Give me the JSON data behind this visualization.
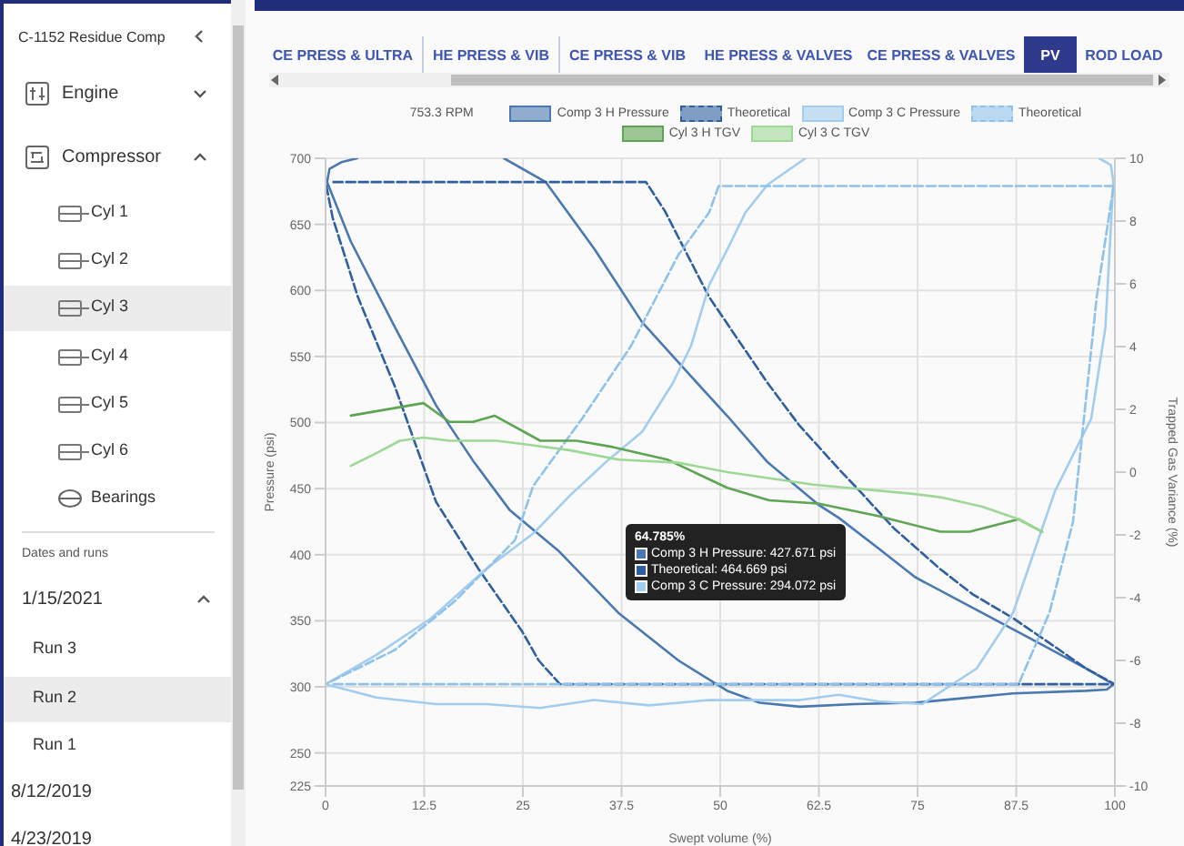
{
  "chart_data": {
    "type": "line",
    "xlabel": "Swept volume (%)",
    "ylabel": "Pressure (psi)",
    "y2label": "Trapped Gas Variance (%)",
    "xlim": [
      0,
      100
    ],
    "xticks": [
      0,
      12.5,
      25,
      37.5,
      50,
      62.5,
      75,
      87.5,
      100
    ],
    "ylim": [
      225,
      700
    ],
    "yticks": [
      225,
      250,
      300,
      350,
      400,
      450,
      500,
      550,
      600,
      650,
      700
    ],
    "y2lim": [
      -10,
      10
    ],
    "y2ticks": [
      -10,
      -8,
      -6,
      -4,
      -2,
      0,
      2,
      4,
      6,
      8,
      10
    ],
    "grid": true,
    "legend": "top",
    "series": [
      {
        "name": "Comp 3 H Pressure",
        "color": "#4a78b0",
        "line_style": "solid",
        "x": [
          22.6,
          27.9,
          34.1,
          40.1,
          46.3,
          50.9,
          56,
          62.4,
          65,
          70,
          74.7,
          81.6,
          90.1,
          96.3,
          99.8,
          99,
          96.3,
          87.1,
          80,
          74.7,
          67,
          60.1,
          55,
          50.9,
          44.7,
          37.1,
          29.5,
          23.3,
          18.7,
          14,
          8.8,
          3.2,
          0.2,
          0.5,
          2,
          4
        ],
        "values": [
          700,
          682,
          631,
          576,
          535,
          505,
          470,
          438,
          428,
          405,
          383,
          361,
          334,
          314,
          302,
          298,
          297,
          295,
          291,
          288,
          287,
          285,
          288,
          297,
          320,
          356,
          403,
          434,
          471,
          513,
          572,
          637,
          682,
          692,
          697,
          700
        ]
      },
      {
        "name": "Theoretical",
        "color": "#2f5f9e",
        "line_style": "dashed",
        "x": [
          1,
          40.6,
          43,
          46,
          48.6,
          52,
          56,
          60,
          65,
          67.7,
          72,
          77.9,
          82,
          87.1,
          92,
          96.3,
          100,
          29.7,
          27,
          24.9,
          19.4,
          14,
          8.8,
          4.1,
          0.9,
          0
        ],
        "values": [
          682,
          682,
          660,
          625,
          595,
          565,
          530,
          498,
          465,
          448,
          420,
          389,
          370,
          352,
          332,
          314,
          302,
          302,
          320,
          342,
          389,
          440,
          527,
          595,
          655,
          682
        ]
      },
      {
        "name": "Comp 3 C Pressure",
        "color": "#a3cdee",
        "line_style": "solid",
        "x": [
          98,
          99.5,
          99.8,
          98.8,
          97,
          92.4,
          87.1,
          82.5,
          75.6,
          70,
          65,
          60.1,
          48.6,
          41,
          34,
          27.2,
          20.3,
          14,
          6.4,
          0,
          6.4,
          13.4,
          20.3,
          26.3,
          31,
          35.5,
          40.1,
          44,
          46.3,
          48.6,
          50.9,
          53.2,
          56,
          60.8
        ],
        "values": [
          700,
          695,
          682,
          572,
          503,
          448,
          356,
          314,
          287,
          289,
          294,
          290,
          290,
          286,
          290,
          284,
          287,
          287,
          292,
          302,
          324,
          352,
          389,
          416,
          445,
          470,
          493,
          530,
          558,
          604,
          631,
          659,
          680,
          700
        ]
      },
      {
        "name": "Theoretical",
        "color": "#8fc2ea",
        "line_style": "dashed",
        "x": [
          1,
          87.8,
          91.7,
          94.7,
          97.7,
          99.8,
          100,
          49.8,
          48.6,
          44.7,
          38.7,
          32.5,
          26.3,
          24,
          16.4,
          8.8,
          0
        ],
        "values": [
          302,
          302,
          356,
          425,
          595,
          678,
          679,
          679,
          659,
          627,
          558,
          503,
          452,
          411,
          365,
          328,
          302
        ]
      },
      {
        "name": "Cyl 3 H TGV",
        "color": "#5da552",
        "line_style": "solid",
        "axis": "y2",
        "x": [
          3.2,
          12.4,
          15.7,
          18.7,
          21.4,
          27.2,
          31.8,
          36.4,
          43.3,
          50.9,
          56.2,
          62.4,
          70,
          77.9,
          81.6,
          87.8,
          90.8
        ],
        "values": [
          1.8,
          2.2,
          1.6,
          1.6,
          1.8,
          1.0,
          1.0,
          0.8,
          0.4,
          -0.5,
          -0.9,
          -1.0,
          -1.4,
          -1.9,
          -1.9,
          -1.5,
          -1.9
        ]
      },
      {
        "name": "Cyl 3 C TGV",
        "color": "#9ed896",
        "line_style": "solid",
        "axis": "y2",
        "x": [
          3.2,
          6.4,
          9.4,
          12.4,
          15.7,
          21.7,
          24.9,
          30.9,
          37.1,
          44.7,
          50.9,
          61.8,
          74.7,
          77.9,
          83.2,
          87.8,
          90.8
        ],
        "values": [
          0.2,
          0.6,
          1.0,
          1.1,
          1.0,
          1.0,
          0.9,
          0.7,
          0.4,
          0.3,
          0.0,
          -0.4,
          -0.7,
          -0.8,
          -1.1,
          -1.5,
          -1.9
        ]
      }
    ],
    "annotations": [
      "753.3 RPM",
      "64.785%",
      "Comp 3 H Pressure: 427.671 psi",
      "Theoretical: 464.669 psi",
      "Comp 3 C Pressure: 294.072 psi",
      "C-1152 Residue Comp",
      "Engine",
      "Compressor",
      "Cyl 1",
      "Cyl 2",
      "Cyl 3",
      "Cyl 4",
      "Cyl 5",
      "Cyl 6",
      "Bearings",
      "Dates and runs",
      "1/15/2021",
      "Run 3",
      "Run 2",
      "Run 1",
      "8/12/2019",
      "4/23/2019",
      "CE PRESS & ULTRA",
      "HE PRESS & VIB",
      "CE PRESS & VIB",
      "HE PRESS & VALVES",
      "CE PRESS & VALVES",
      "PV",
      "ROD LOAD"
    ]
  }
}
